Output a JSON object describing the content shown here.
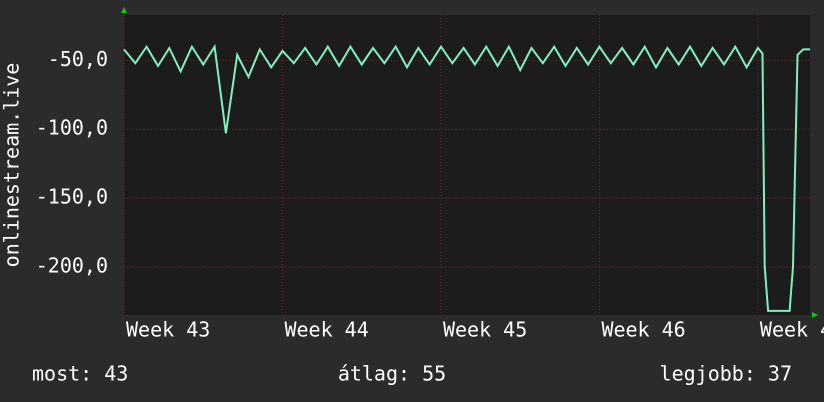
{
  "chart_data": {
    "type": "line",
    "y_label": "onlinestream.live",
    "x": [
      0,
      0.5,
      1,
      1.5,
      2,
      2.5,
      3,
      3.5,
      4,
      4.5,
      5,
      5.5,
      6,
      6.5,
      7,
      7.5,
      8,
      8.5,
      9,
      9.5,
      10,
      10.5,
      11,
      11.5,
      12,
      12.5,
      13,
      13.5,
      14,
      14.5,
      15,
      15.5,
      16,
      16.5,
      17,
      17.5,
      18,
      18.5,
      19,
      19.5,
      20,
      20.5,
      21,
      21.5,
      22,
      22.5,
      23,
      23.5,
      24,
      24.5,
      25,
      25.5,
      26,
      26.5,
      27,
      27.5,
      28,
      28.2,
      28.3,
      28.45,
      29.4,
      29.55,
      29.75,
      30,
      30.3
    ],
    "series": [
      {
        "color": "#80f0c0",
        "values": [
          -42,
          -52,
          -40,
          -54,
          -41,
          -58,
          -40,
          -53,
          -40,
          -103,
          -46,
          -62,
          -42,
          -55,
          -43,
          -52,
          -41,
          -53,
          -40,
          -54,
          -40,
          -53,
          -41,
          -52,
          -40,
          -55,
          -41,
          -53,
          -40,
          -52,
          -41,
          -53,
          -40,
          -54,
          -40,
          -57,
          -41,
          -52,
          -40,
          -54,
          -41,
          -53,
          -40,
          -52,
          -41,
          -53,
          -40,
          -55,
          -41,
          -53,
          -40,
          -54,
          -41,
          -53,
          -40,
          -55,
          -41,
          -45,
          -200,
          -232,
          -232,
          -200,
          -46,
          -42,
          -42
        ]
      }
    ],
    "xlim": [
      0,
      30.3
    ],
    "xticks": [
      {
        "value": 0,
        "label": "Week 43"
      },
      {
        "value": 7,
        "label": "Week 44"
      },
      {
        "value": 14,
        "label": "Week 45"
      },
      {
        "value": 21,
        "label": "Week 46"
      },
      {
        "value": 28,
        "label": "Week 4"
      }
    ],
    "ylim": [
      -235,
      -17
    ],
    "yticks": [
      {
        "value": -50,
        "label": "-50,0"
      },
      {
        "value": -100,
        "label": "-100,0"
      },
      {
        "value": -150,
        "label": "-150,0"
      },
      {
        "value": -200,
        "label": "-200,0"
      }
    ],
    "grid": true,
    "footer": [
      "most: 43",
      "átlag: 55",
      "legjobb: 37"
    ]
  }
}
